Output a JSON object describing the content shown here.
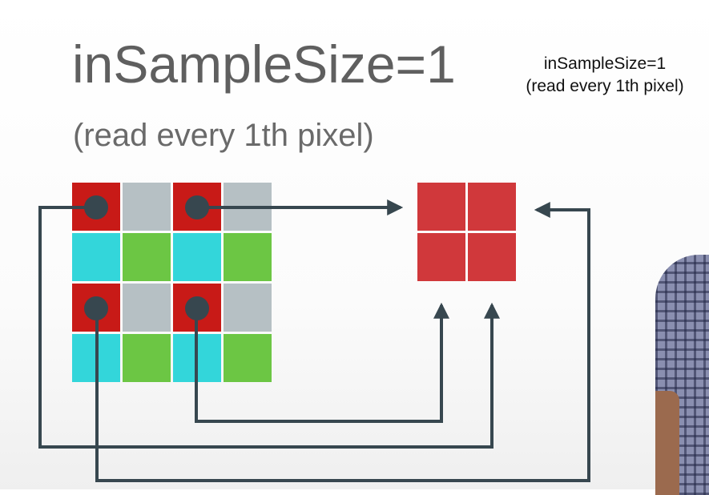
{
  "slide": {
    "title": "inSampleSize=1",
    "subtitle": "(read every 1th pixel)"
  },
  "caption": {
    "line1": "inSampleSize=1",
    "line2": "(read every 1th pixel)"
  },
  "colors": {
    "red": "#c81a17",
    "gray": "#b6c0c4",
    "cyan": "#33d6da",
    "green": "#6cc644",
    "output_red": "#d0383b",
    "dot": "#37474f",
    "arrow": "#37474f",
    "title_text": "#5f5f5f"
  },
  "source_grid": {
    "rows": [
      [
        "red",
        "gray",
        "red",
        "gray"
      ],
      [
        "cyan",
        "green",
        "cyan",
        "green"
      ],
      [
        "red",
        "gray",
        "red",
        "gray"
      ],
      [
        "cyan",
        "green",
        "cyan",
        "green"
      ]
    ],
    "sampled_cells": [
      [
        0,
        0
      ],
      [
        0,
        2
      ],
      [
        2,
        0
      ],
      [
        2,
        2
      ]
    ]
  },
  "output_grid": {
    "rows": [
      [
        "output_red",
        "output_red"
      ],
      [
        "output_red",
        "output_red"
      ]
    ]
  }
}
